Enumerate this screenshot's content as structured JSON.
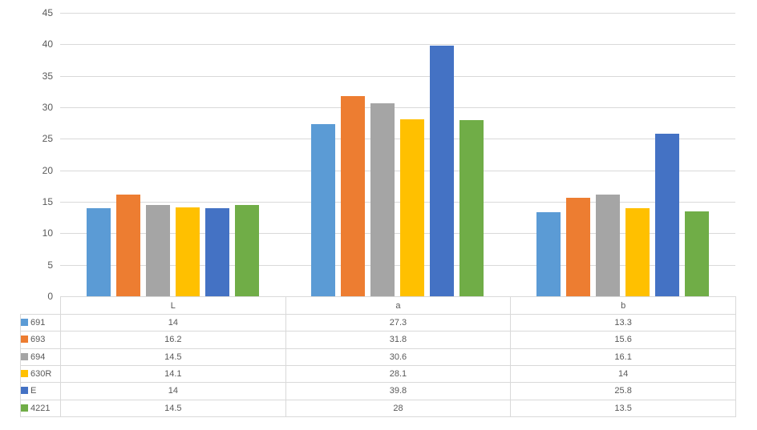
{
  "chart_data": {
    "type": "bar",
    "title": "",
    "xlabel": "",
    "ylabel": "",
    "categories": [
      "L",
      "a",
      "b"
    ],
    "series": [
      {
        "name": "691",
        "color": "#5B9BD5",
        "values": [
          14,
          27.3,
          13.3
        ]
      },
      {
        "name": "693",
        "color": "#ED7D31",
        "values": [
          16.2,
          31.8,
          15.6
        ]
      },
      {
        "name": "694",
        "color": "#A5A5A5",
        "values": [
          14.5,
          30.6,
          16.1
        ]
      },
      {
        "name": "630R",
        "color": "#FFC000",
        "values": [
          14.1,
          28.1,
          14
        ]
      },
      {
        "name": "E",
        "color": "#4472C4",
        "values": [
          14,
          39.8,
          25.8
        ]
      },
      {
        "name": "4221",
        "color": "#70AD47",
        "values": [
          14.5,
          28,
          13.5
        ]
      }
    ],
    "y_axis": {
      "min": 0,
      "max": 45,
      "step": 5,
      "tick_labels": [
        "0",
        "5",
        "10",
        "15",
        "20",
        "25",
        "30",
        "35",
        "40",
        "45"
      ]
    },
    "grid": true,
    "legend_position": "data-table-left-column",
    "data_table_shown": true
  },
  "colors": {
    "background": "#FFFFFF",
    "gridline": "#D9D9D9",
    "table_border": "#D9D9D9",
    "axis_text": "#595959",
    "table_text": "#595959"
  }
}
